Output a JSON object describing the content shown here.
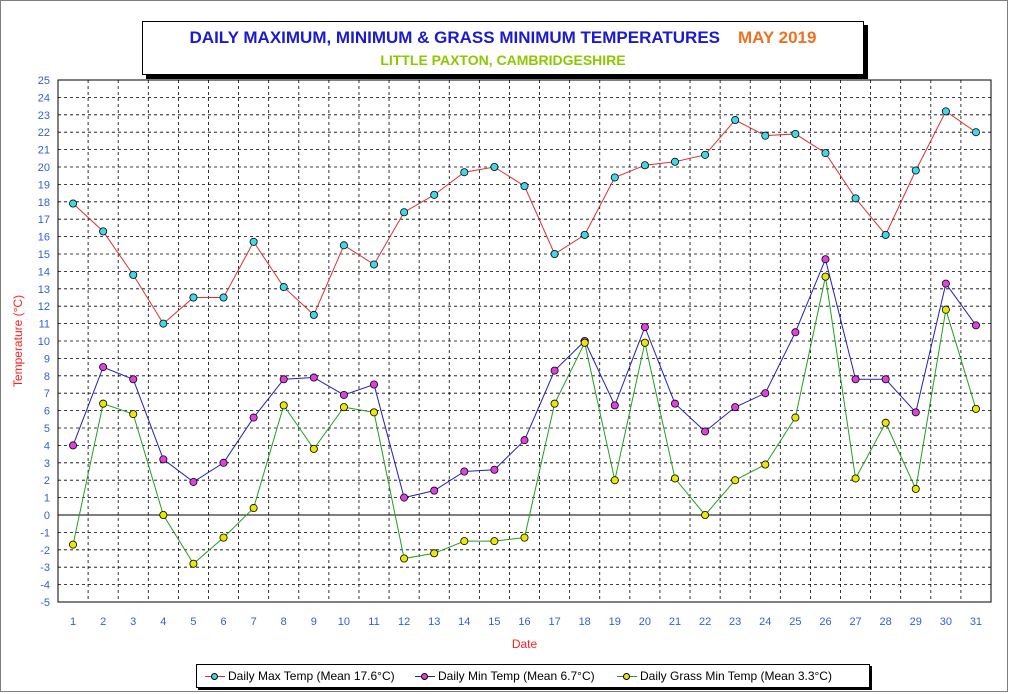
{
  "header": {
    "title": "DAILY MAXIMUM, MINIMUM & GRASS MINIMUM TEMPERATURES",
    "month": "MAY 2019",
    "subtitle": "LITTLE PAXTON, CAMBRIDGESHIRE"
  },
  "colors": {
    "title": "#1a1ad0",
    "month": "#f07020",
    "subtitle": "#8cc800",
    "axis_labels": "#ff2020",
    "tick_labels": "#3060d8",
    "max_line": "#e03030",
    "max_marker": "#40d8e8",
    "min_line": "#2020c0",
    "min_marker": "#e040e0",
    "grass_line": "#20a020",
    "grass_marker": "#e8e800"
  },
  "chart_data": {
    "type": "line",
    "xlabel": "Date",
    "ylabel": "Temperature (°C)",
    "ylim": [
      -5,
      25
    ],
    "yticks": [
      -5,
      -4,
      -3,
      -2,
      -1,
      0,
      1,
      2,
      3,
      4,
      5,
      6,
      7,
      8,
      9,
      10,
      11,
      12,
      13,
      14,
      15,
      16,
      17,
      18,
      19,
      20,
      21,
      22,
      23,
      24,
      25
    ],
    "x": [
      1,
      2,
      3,
      4,
      5,
      6,
      7,
      8,
      9,
      10,
      11,
      12,
      13,
      14,
      15,
      16,
      17,
      18,
      19,
      20,
      21,
      22,
      23,
      24,
      25,
      26,
      27,
      28,
      29,
      30,
      31
    ],
    "grid": true,
    "legend_position": "bottom",
    "series": [
      {
        "key": "max",
        "name": "Daily Max Temp (Mean 17.6°C)",
        "values": [
          17.9,
          16.3,
          13.8,
          11.0,
          12.5,
          12.5,
          15.7,
          13.1,
          11.5,
          15.5,
          14.4,
          17.4,
          18.4,
          19.7,
          20.0,
          18.9,
          15.0,
          16.1,
          19.4,
          20.1,
          20.3,
          20.7,
          22.7,
          21.8,
          21.9,
          20.8,
          18.2,
          16.1,
          19.8,
          23.2,
          22.0
        ]
      },
      {
        "key": "min",
        "name": "Daily Min Temp (Mean 6.7°C)",
        "values": [
          4.0,
          8.5,
          7.8,
          3.2,
          1.9,
          3.0,
          5.6,
          7.8,
          7.9,
          6.9,
          7.5,
          1.0,
          1.4,
          2.5,
          2.6,
          4.3,
          8.3,
          10.0,
          6.3,
          10.8,
          6.4,
          4.8,
          6.2,
          7.0,
          10.5,
          14.7,
          7.8,
          7.8,
          5.9,
          13.3,
          10.9
        ]
      },
      {
        "key": "grass",
        "name": "Daily Grass Min Temp (Mean 3.3°C)",
        "values": [
          -1.7,
          6.4,
          5.8,
          0.0,
          -2.8,
          -1.3,
          0.4,
          6.3,
          3.8,
          6.2,
          5.9,
          -2.5,
          -2.2,
          -1.5,
          -1.5,
          -1.3,
          6.4,
          9.9,
          2.0,
          9.9,
          2.1,
          0.0,
          2.0,
          2.9,
          5.6,
          13.7,
          2.1,
          5.3,
          1.5,
          11.8,
          6.1
        ]
      }
    ]
  }
}
